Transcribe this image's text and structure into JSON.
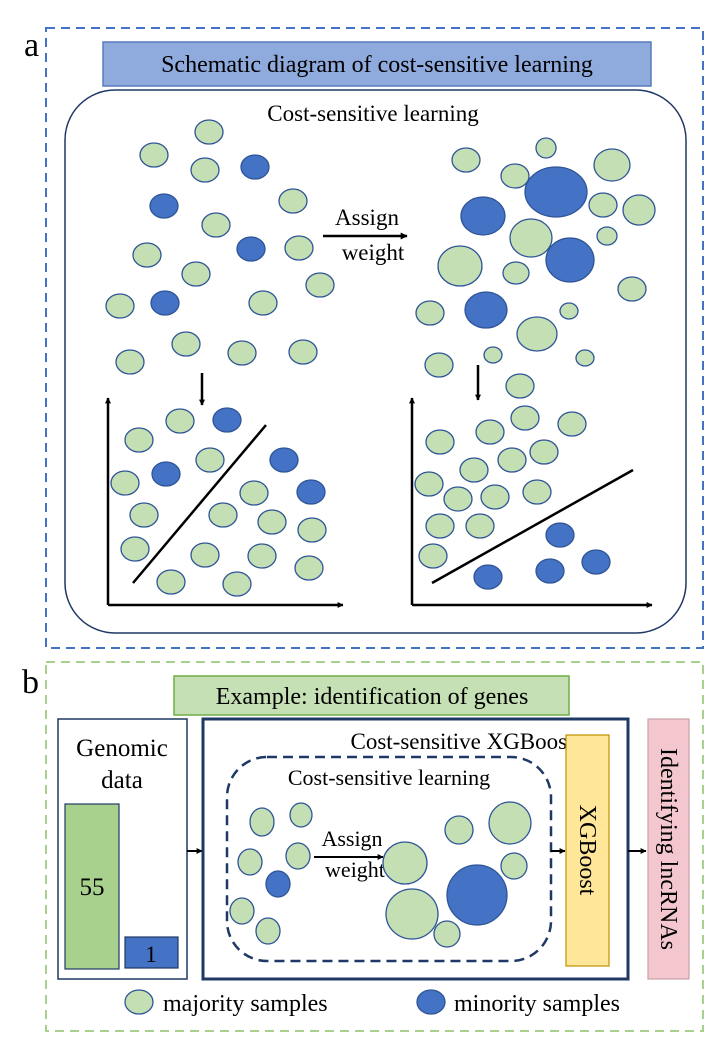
{
  "panel_a": {
    "letter": "a",
    "title": "Schematic diagram of cost-sensitive learning",
    "inner_title": "Cost-sensitive learning",
    "assign_line1": "Assign",
    "assign_line2": "weight"
  },
  "panel_b": {
    "letter": "b",
    "title": "Example: identification of genes",
    "genomic_line1": "Genomic",
    "genomic_line2": "data",
    "bar_majority_value": "55",
    "bar_minority_value": "1",
    "xgb_title": "Cost-sensitive XGBoost",
    "csl_title": "Cost-sensitive learning",
    "assign_line1": "Assign",
    "assign_line2": "weight",
    "xgboost_label": "XGBoost",
    "output_label": "Identifying lncRNAs",
    "legend_majority": "majority samples",
    "legend_minority": "minority samples"
  },
  "colors": {
    "majority_fill": "#c5dfb4",
    "minority_fill": "#4472c4",
    "circle_stroke": "#2f5597",
    "panel_a_border": "#4472c4",
    "panel_b_border": "#a9d18e",
    "title_a_fill": "#8faadc",
    "title_b_fill": "#c5e0b4",
    "bar_majority": "#a9d18e",
    "bar_minority": "#4472c4",
    "xgboost_fill": "#ffe699",
    "output_fill": "#f4c7cf",
    "dark_border": "#1f3864"
  }
}
